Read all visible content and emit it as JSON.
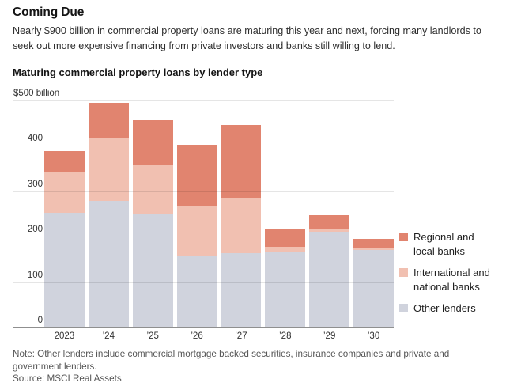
{
  "header": {
    "title": "Coming Due",
    "subtitle": "Nearly $900 billion in commercial property loans are maturing this year and next, forcing many landlords to seek out more expensive financing from private investors and banks still willing to lend."
  },
  "chart_data": {
    "type": "bar",
    "stacked": true,
    "title": "Maturing commercial property loans by lender type",
    "categories": [
      "2023",
      "’24",
      "’25",
      "’26",
      "’27",
      "’28",
      "’29",
      "’30"
    ],
    "series": [
      {
        "name": "Regional and local banks",
        "color": "#e1846f",
        "values": [
          47,
          78,
          99,
          136,
          160,
          39,
          30,
          21
        ]
      },
      {
        "name": "International and national banks",
        "color": "#f1c0b1",
        "values": [
          88,
          138,
          108,
          109,
          123,
          12,
          7,
          5
        ]
      },
      {
        "name": "Other lenders",
        "color": "#d0d3dd",
        "values": [
          253,
          279,
          250,
          158,
          163,
          166,
          210,
          170
        ]
      }
    ],
    "totals": [
      388,
      495,
      457,
      403,
      446,
      217,
      247,
      196
    ],
    "ylim": [
      0,
      500
    ],
    "yticks": [
      0,
      100,
      200,
      300,
      400,
      500
    ],
    "y_unit_label": "$500 billion",
    "grid": true,
    "legend_position": "right"
  },
  "footer": {
    "note": "Note: Other lenders include commercial mortgage backed securities, insurance companies and private and government lenders.",
    "source": "Source: MSCI Real Assets"
  }
}
